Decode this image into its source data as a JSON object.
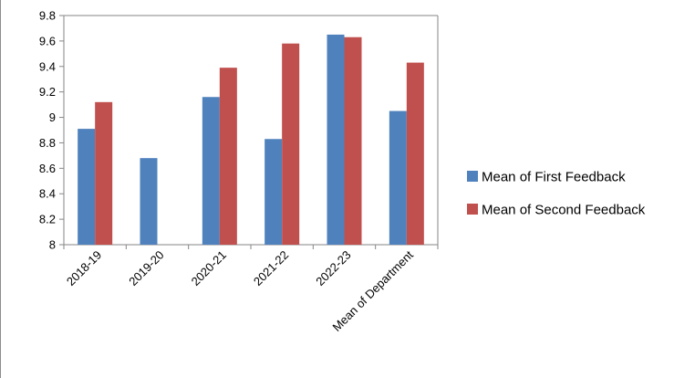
{
  "chart_data": {
    "type": "bar",
    "categories": [
      "2018-19",
      "2019-20",
      "2020-21",
      "2021-22",
      "2022-23",
      "Mean of Department"
    ],
    "series": [
      {
        "name": "Mean of First Feedback",
        "color": "#4F81BD",
        "values": [
          8.91,
          8.68,
          9.16,
          8.83,
          9.65,
          9.05
        ]
      },
      {
        "name": "Mean of Second Feedback",
        "color": "#C0504D",
        "values": [
          9.12,
          null,
          9.39,
          9.58,
          9.63,
          9.43
        ]
      }
    ],
    "ylim": [
      8,
      9.8
    ],
    "yticks": [
      "8",
      "8.2",
      "8.4",
      "8.6",
      "8.8",
      "9",
      "9.2",
      "9.4",
      "9.6",
      "9.8"
    ],
    "grid": false,
    "legend_position": "right",
    "title": "",
    "xlabel": "",
    "ylabel": ""
  }
}
